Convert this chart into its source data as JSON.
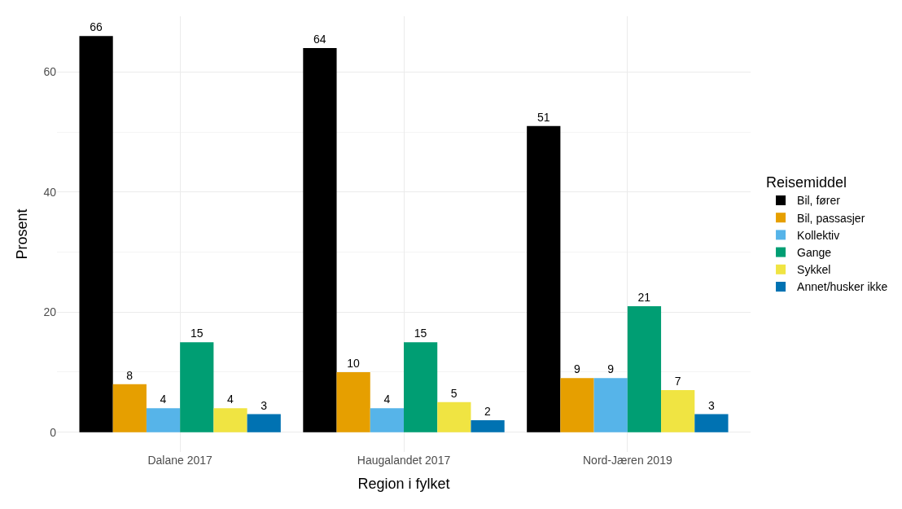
{
  "chart_data": {
    "type": "bar",
    "xlabel": "Region i fylket",
    "ylabel": "Prosent",
    "legend_title": "Reisemiddel",
    "categories": [
      "Dalane 2017",
      "Haugalandet 2017",
      "Nord-Jæren 2019"
    ],
    "series": [
      {
        "name": "Bil, fører",
        "color": "#000000",
        "values": [
          66,
          64,
          51
        ]
      },
      {
        "name": "Bil, passasjer",
        "color": "#e69f00",
        "values": [
          8,
          10,
          9
        ]
      },
      {
        "name": "Kollektiv",
        "color": "#56b4e9",
        "values": [
          4,
          4,
          9
        ]
      },
      {
        "name": "Gange",
        "color": "#009e73",
        "values": [
          15,
          15,
          21
        ]
      },
      {
        "name": "Sykkel",
        "color": "#f0e442",
        "values": [
          4,
          5,
          7
        ]
      },
      {
        "name": "Annet/husker ikke",
        "color": "#0072b2",
        "values": [
          3,
          2,
          3
        ]
      }
    ],
    "ylim": [
      -3.3,
      69.3
    ],
    "yticks": [
      0,
      20,
      40,
      60
    ],
    "grid": true,
    "legend": "right",
    "data_labels": true
  }
}
